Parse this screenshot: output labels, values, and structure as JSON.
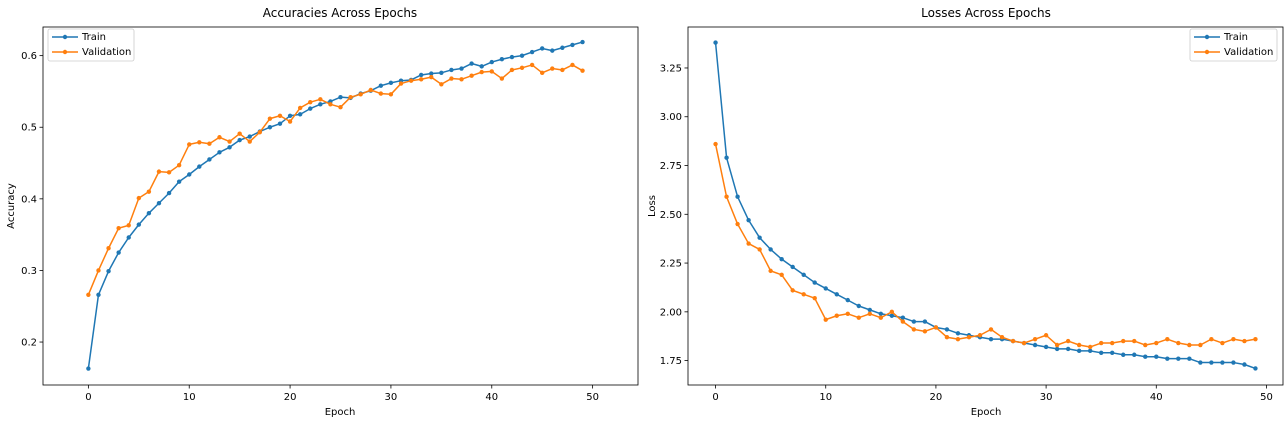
{
  "chart_data": [
    {
      "type": "line",
      "title": "Accuracies Across Epochs",
      "xlabel": "Epoch",
      "ylabel": "Accuracy",
      "xlim": [
        -4.5,
        54.5
      ],
      "ylim": [
        0.14,
        0.64
      ],
      "xticks": [
        0,
        10,
        20,
        30,
        40,
        50
      ],
      "yticks": [
        0.2,
        0.3,
        0.4,
        0.5,
        0.6
      ],
      "ytick_labels": [
        "0.2",
        "0.3",
        "0.4",
        "0.5",
        "0.6"
      ],
      "legend_position": "top-left",
      "x": [
        0,
        1,
        2,
        3,
        4,
        5,
        6,
        7,
        8,
        9,
        10,
        11,
        12,
        13,
        14,
        15,
        16,
        17,
        18,
        19,
        20,
        21,
        22,
        23,
        24,
        25,
        26,
        27,
        28,
        29,
        30,
        31,
        32,
        33,
        34,
        35,
        36,
        37,
        38,
        39,
        40,
        41,
        42,
        43,
        44,
        45,
        46,
        47,
        48,
        49
      ],
      "series": [
        {
          "name": "Train",
          "color": "#1f77b4",
          "values": [
            0.163,
            0.266,
            0.299,
            0.325,
            0.346,
            0.364,
            0.38,
            0.394,
            0.408,
            0.424,
            0.434,
            0.445,
            0.455,
            0.465,
            0.472,
            0.482,
            0.487,
            0.494,
            0.5,
            0.505,
            0.516,
            0.518,
            0.526,
            0.532,
            0.536,
            0.542,
            0.541,
            0.547,
            0.551,
            0.558,
            0.562,
            0.565,
            0.566,
            0.573,
            0.575,
            0.576,
            0.58,
            0.582,
            0.589,
            0.585,
            0.591,
            0.595,
            0.598,
            0.6,
            0.605,
            0.61,
            0.607,
            0.611,
            0.615,
            0.619
          ]
        },
        {
          "name": "Validation",
          "color": "#ff7f0e",
          "values": [
            0.266,
            0.3,
            0.331,
            0.359,
            0.363,
            0.401,
            0.41,
            0.438,
            0.437,
            0.447,
            0.476,
            0.479,
            0.477,
            0.486,
            0.48,
            0.491,
            0.48,
            0.493,
            0.512,
            0.516,
            0.508,
            0.527,
            0.535,
            0.539,
            0.532,
            0.528,
            0.542,
            0.546,
            0.552,
            0.547,
            0.546,
            0.561,
            0.565,
            0.567,
            0.57,
            0.56,
            0.568,
            0.567,
            0.572,
            0.577,
            0.578,
            0.568,
            0.58,
            0.583,
            0.587,
            0.576,
            0.582,
            0.58,
            0.587,
            0.579
          ]
        }
      ]
    },
    {
      "type": "line",
      "title": "Losses Across Epochs",
      "xlabel": "Epoch",
      "ylabel": "Loss",
      "xlim": [
        -2.5,
        51.5
      ],
      "ylim": [
        1.625,
        3.46
      ],
      "xticks": [
        0,
        10,
        20,
        30,
        40,
        50
      ],
      "yticks": [
        1.75,
        2.0,
        2.25,
        2.5,
        2.75,
        3.0,
        3.25
      ],
      "ytick_labels": [
        "1.75",
        "2.00",
        "2.25",
        "2.50",
        "2.75",
        "3.00",
        "3.25"
      ],
      "legend_position": "top-right",
      "x": [
        0,
        1,
        2,
        3,
        4,
        5,
        6,
        7,
        8,
        9,
        10,
        11,
        12,
        13,
        14,
        15,
        16,
        17,
        18,
        19,
        20,
        21,
        22,
        23,
        24,
        25,
        26,
        27,
        28,
        29,
        30,
        31,
        32,
        33,
        34,
        35,
        36,
        37,
        38,
        39,
        40,
        41,
        42,
        43,
        44,
        45,
        46,
        47,
        48,
        49
      ],
      "series": [
        {
          "name": "Train",
          "color": "#1f77b4",
          "values": [
            3.38,
            2.79,
            2.59,
            2.47,
            2.38,
            2.32,
            2.27,
            2.23,
            2.19,
            2.15,
            2.12,
            2.09,
            2.06,
            2.03,
            2.01,
            1.99,
            1.98,
            1.97,
            1.95,
            1.95,
            1.92,
            1.91,
            1.89,
            1.88,
            1.87,
            1.86,
            1.86,
            1.85,
            1.84,
            1.83,
            1.82,
            1.81,
            1.81,
            1.8,
            1.8,
            1.79,
            1.79,
            1.78,
            1.78,
            1.77,
            1.77,
            1.76,
            1.76,
            1.76,
            1.74,
            1.74,
            1.74,
            1.74,
            1.73,
            1.71
          ]
        },
        {
          "name": "Validation",
          "color": "#ff7f0e",
          "values": [
            2.86,
            2.59,
            2.45,
            2.35,
            2.32,
            2.21,
            2.19,
            2.11,
            2.09,
            2.07,
            1.96,
            1.98,
            1.99,
            1.97,
            1.99,
            1.97,
            2.0,
            1.95,
            1.91,
            1.9,
            1.92,
            1.87,
            1.86,
            1.87,
            1.88,
            1.91,
            1.87,
            1.85,
            1.84,
            1.86,
            1.88,
            1.83,
            1.85,
            1.83,
            1.82,
            1.84,
            1.84,
            1.85,
            1.85,
            1.83,
            1.84,
            1.86,
            1.84,
            1.83,
            1.83,
            1.86,
            1.84,
            1.86,
            1.85,
            1.86
          ]
        }
      ]
    }
  ]
}
